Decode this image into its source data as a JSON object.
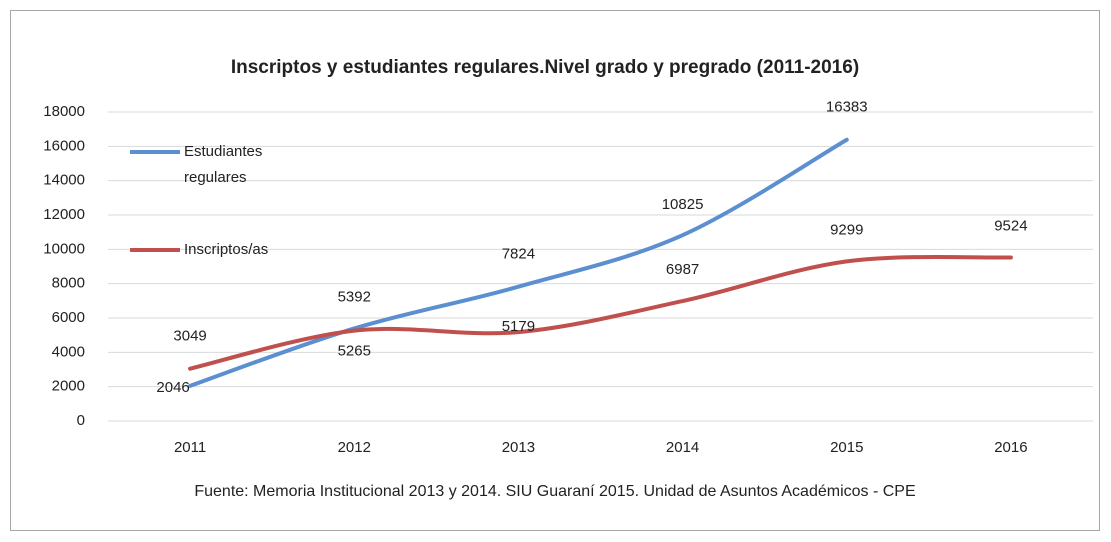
{
  "chart_data": {
    "type": "line",
    "title": "Inscriptos y estudiantes regulares.Nivel grado y pregrado (2011-2016)",
    "source": "Fuente: Memoria Institucional 2013 y 2014. SIU Guaraní 2015. Unidad de Asuntos Académicos - CPE",
    "categories": [
      "2011",
      "2012",
      "2013",
      "2014",
      "2015",
      "2016"
    ],
    "series": [
      {
        "name": "Estudiantes regulares",
        "color": "#5b8fd0",
        "values": [
          2046,
          5392,
          7824,
          10825,
          16383,
          null
        ]
      },
      {
        "name": "Inscriptos/as",
        "color": "#c0504d",
        "values": [
          3049,
          5265,
          5179,
          6987,
          9299,
          9524
        ]
      }
    ],
    "ylim": [
      0,
      18000
    ],
    "yticks": [
      0,
      2000,
      4000,
      6000,
      8000,
      10000,
      12000,
      14000,
      16000,
      18000
    ],
    "grid": true,
    "legend": "left",
    "smooth": true
  }
}
